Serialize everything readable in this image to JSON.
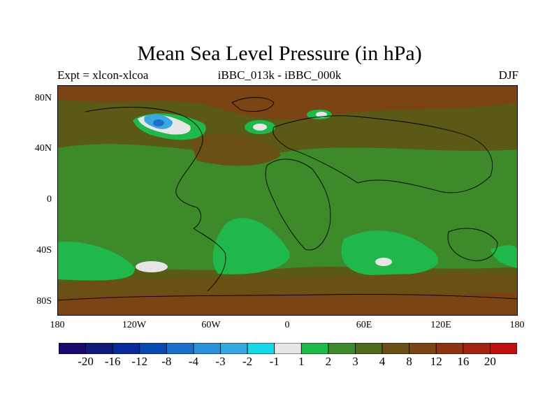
{
  "title": "Mean Sea Level Pressure (in hPa)",
  "subtitle_left": "Expt = xlcon-xlcoa",
  "subtitle_center": "iBBC_013k - iBBC_000k",
  "subtitle_right": "DJF",
  "axes": {
    "y_ticks": [
      "80N",
      "40N",
      "0",
      "40S",
      "80S"
    ],
    "x_ticks": [
      "180",
      "120W",
      "60W",
      "0",
      "60E",
      "120E",
      "180"
    ]
  },
  "colorbar": {
    "colors": [
      "#1a0a6e",
      "#101a7a",
      "#0a2a9a",
      "#0a4ab0",
      "#1a6fc8",
      "#2a90d8",
      "#3aa8e0",
      "#18d8e8",
      "#e6e6e6",
      "#20b84a",
      "#3d8a2a",
      "#4d6b1a",
      "#6a5014",
      "#7a4414",
      "#8a3410",
      "#a02410",
      "#c01010"
    ],
    "labels": [
      "-20",
      "-16",
      "-12",
      "-8",
      "-4",
      "-3",
      "-2",
      "-1",
      "1",
      "2",
      "3",
      "4",
      "8",
      "12",
      "16",
      "20"
    ]
  }
}
